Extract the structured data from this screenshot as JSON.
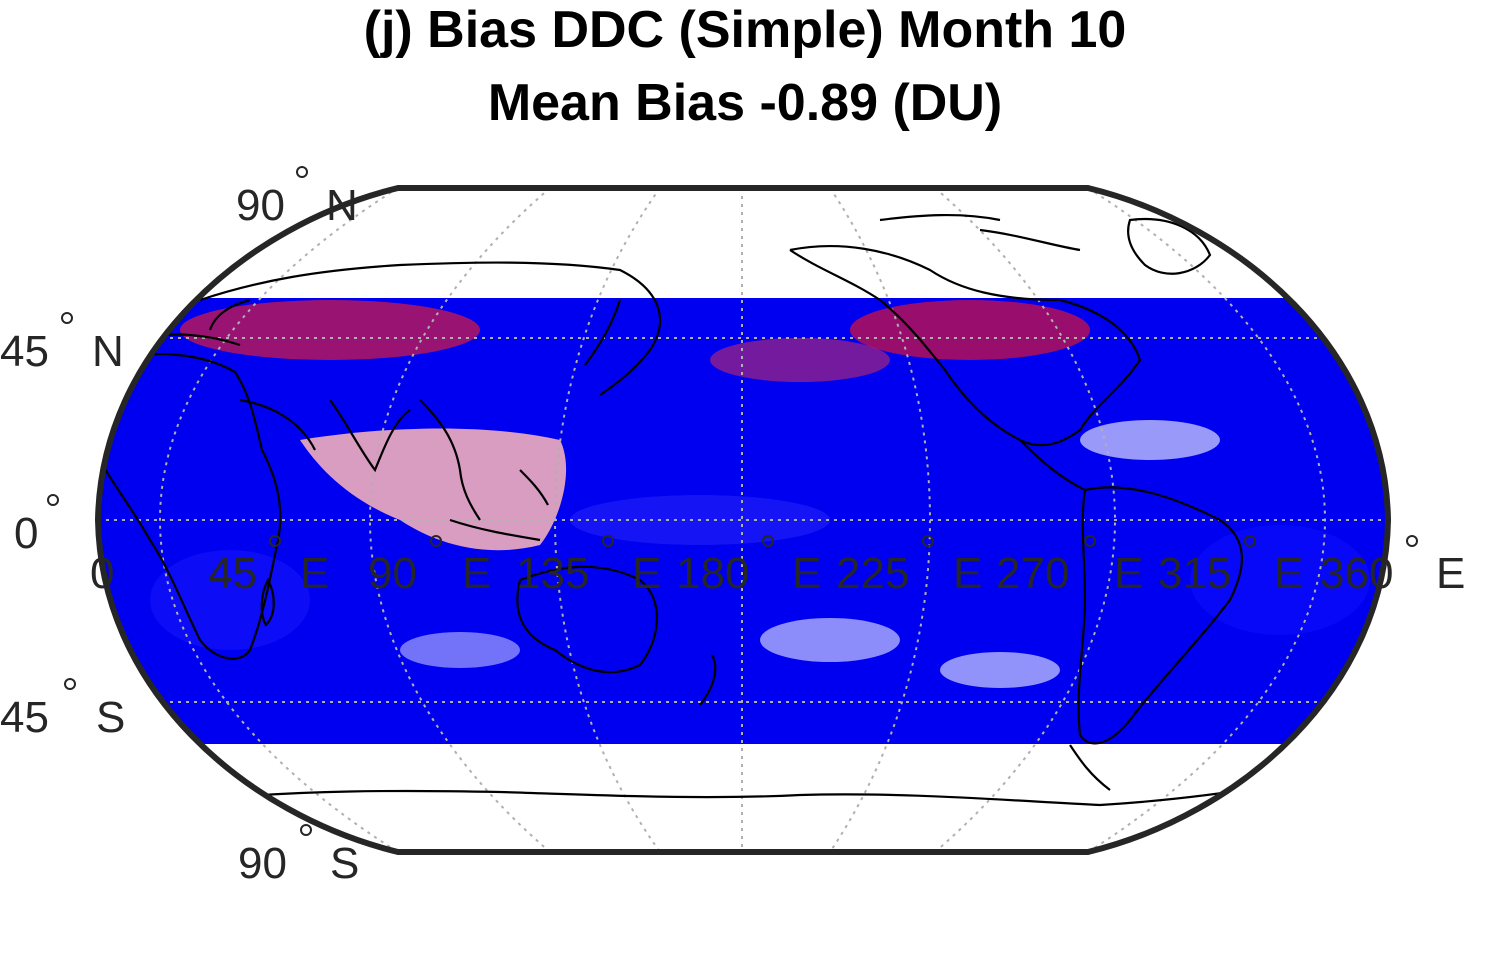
{
  "title": {
    "line1": "(j) Bias DDC (Simple) Month 10",
    "line2": "Mean Bias -0.89 (DU)"
  },
  "map": {
    "projection": "robinson",
    "colormap": "blue-white-red diverging",
    "colors": {
      "strong_positive": "#ff0000",
      "strong_negative": "#0000ff",
      "neutral": "#ffffff",
      "frame": "#262626",
      "coastline": "#000000",
      "graticule": "#b0b0b0"
    },
    "data_lat_range": [
      -60,
      60
    ],
    "lat_labels": [
      {
        "value": "90",
        "hemi": "N"
      },
      {
        "value": "45",
        "hemi": "N"
      },
      {
        "value": "0",
        "hemi": ""
      },
      {
        "value": "45",
        "hemi": "S"
      },
      {
        "value": "90",
        "hemi": "S"
      }
    ],
    "lon_labels": [
      {
        "value": "0",
        "hemi": ""
      },
      {
        "value": "45",
        "hemi": "E"
      },
      {
        "value": "90",
        "hemi": "E"
      },
      {
        "value": "135",
        "hemi": "E"
      },
      {
        "value": "180",
        "hemi": "E"
      },
      {
        "value": "225",
        "hemi": "E"
      },
      {
        "value": "270",
        "hemi": "E"
      },
      {
        "value": "315",
        "hemi": "E"
      },
      {
        "value": "360",
        "hemi": "E"
      }
    ]
  }
}
